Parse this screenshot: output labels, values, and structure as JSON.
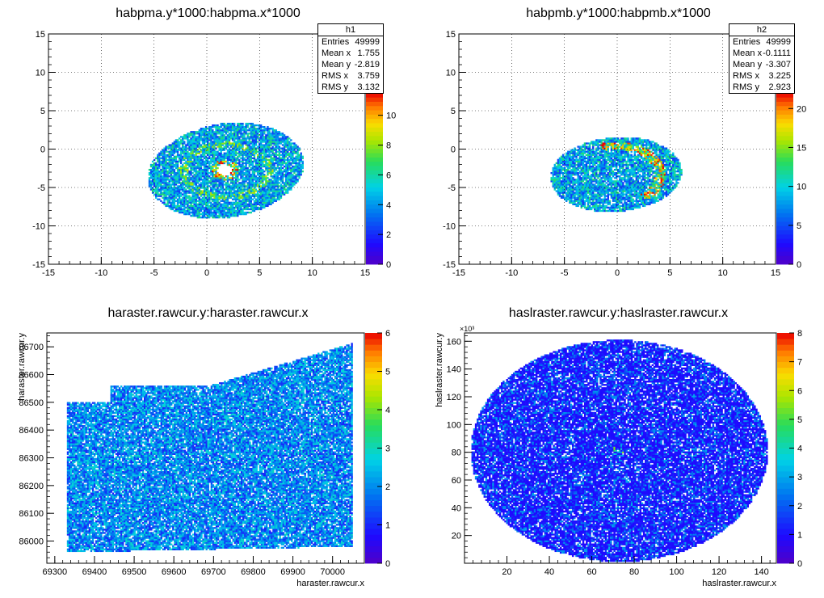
{
  "chart_data": [
    {
      "type": "heatmap",
      "title": "habpma.y*1000:habpma.x*1000",
      "xlabel": "",
      "ylabel": "",
      "xlim": [
        -15,
        15
      ],
      "ylim": [
        -15,
        15
      ],
      "x_ticks": [
        -15,
        -10,
        -5,
        0,
        5,
        10,
        15
      ],
      "y_ticks": [
        -15,
        -10,
        -5,
        0,
        5,
        10,
        15
      ],
      "z_ticks": [
        0,
        2,
        4,
        6,
        8,
        10
      ],
      "zlim": [
        0,
        11.5
      ],
      "grid": true,
      "shape": "blob",
      "center": [
        1.8,
        -2.8
      ],
      "radii": [
        7.3,
        6.2
      ],
      "hole": true,
      "stats": {
        "name": "h1",
        "entries": {
          "label": "Entries",
          "value": "49999"
        },
        "mean_x": {
          "label": "Mean x",
          "value": "1.755"
        },
        "mean_y": {
          "label": "Mean y",
          "value": "-2.819"
        },
        "rms_x": {
          "label": "RMS x",
          "value": "3.759"
        },
        "rms_y": {
          "label": "RMS y",
          "value": "3.132"
        }
      }
    },
    {
      "type": "heatmap",
      "title": "habpmb.y*1000:habpmb.x*1000",
      "xlabel": "",
      "ylabel": "",
      "xlim": [
        -15,
        15
      ],
      "ylim": [
        -15,
        15
      ],
      "x_ticks": [
        -15,
        -10,
        -5,
        0,
        5,
        10,
        15
      ],
      "y_ticks": [
        -15,
        -10,
        -5,
        0,
        5,
        10,
        15
      ],
      "z_ticks": [
        0,
        5,
        10,
        15,
        20
      ],
      "zlim": [
        0,
        22
      ],
      "grid": true,
      "shape": "blob",
      "center": [
        -0.1,
        -3.3
      ],
      "radii": [
        5.8,
        5.2
      ],
      "hole": false,
      "stats": {
        "name": "h2",
        "entries": {
          "label": "Entries",
          "value": "49999"
        },
        "mean_x": {
          "label": "Mean x",
          "value": "-0.1111"
        },
        "mean_y": {
          "label": "Mean y",
          "value": "-3.307"
        },
        "rms_x": {
          "label": "RMS x",
          "value": "3.225"
        },
        "rms_y": {
          "label": "RMS y",
          "value": "2.923"
        }
      }
    },
    {
      "type": "heatmap",
      "title": "haraster.rawcur.y:haraster.rawcur.x",
      "xlabel": "haraster.rawcur.x",
      "ylabel": "haraster.rawcur.y",
      "xlim": [
        69280,
        70080
      ],
      "ylim": [
        85920,
        86750
      ],
      "x_ticks": [
        69300,
        69400,
        69500,
        69600,
        69700,
        69800,
        69900,
        70000
      ],
      "y_ticks": [
        86000,
        86100,
        86200,
        86300,
        86400,
        86500,
        86600,
        86700
      ],
      "z_ticks": [
        0,
        1,
        2,
        3,
        4,
        5,
        6
      ],
      "zlim": [
        0,
        6
      ],
      "grid": false,
      "shape": "rect"
    },
    {
      "type": "heatmap",
      "title": "haslraster.rawcur.y:haslraster.rawcur.x",
      "xlabel": "haslraster.rawcur.x",
      "ylabel": "haslraster.rawcur.y",
      "exponent_label": "×10³",
      "xlim": [
        0,
        147
      ],
      "ylim": [
        0,
        166
      ],
      "x_ticks": [
        20,
        40,
        60,
        80,
        100,
        120,
        140
      ],
      "y_ticks": [
        20,
        40,
        60,
        80,
        100,
        120,
        140,
        160
      ],
      "z_ticks": [
        0,
        1,
        2,
        3,
        4,
        5,
        6,
        7,
        8
      ],
      "zlim": [
        0,
        8
      ],
      "grid": false,
      "shape": "ellipse",
      "center": [
        73,
        81
      ],
      "radii": [
        70,
        80
      ]
    }
  ]
}
